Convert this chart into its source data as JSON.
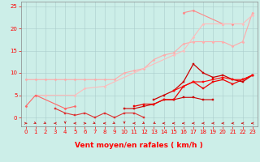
{
  "background_color": "#cceee8",
  "grid_color": "#aacccc",
  "xlim": [
    -0.5,
    23.5
  ],
  "ylim": [
    -2,
    26
  ],
  "x_ticks": [
    0,
    1,
    2,
    3,
    4,
    5,
    6,
    7,
    8,
    9,
    10,
    11,
    12,
    13,
    14,
    15,
    16,
    17,
    18,
    19,
    20,
    21,
    22,
    23
  ],
  "y_ticks": [
    0,
    5,
    10,
    15,
    20,
    25
  ],
  "tick_fontsize": 5,
  "xlabel": "Vent moyen/en rafales ( km/h )",
  "xlabel_fontsize": 6.5,
  "tick_color": "#ff0000",
  "xlabel_color": "#ff0000",
  "series": [
    {
      "x": [
        0,
        1,
        2,
        3,
        4,
        5,
        6,
        7,
        8,
        9,
        10,
        11,
        12,
        13,
        14,
        15,
        16,
        17,
        18,
        19,
        20,
        21,
        22,
        23
      ],
      "y": [
        8.5,
        8.5,
        8.5,
        8.5,
        8.5,
        8.5,
        8.5,
        8.5,
        8.5,
        8.5,
        10,
        10.5,
        11,
        13,
        14,
        14.5,
        16.5,
        17,
        17,
        17,
        17,
        16,
        17,
        23.5
      ],
      "color": "#ffaaaa",
      "marker": "D",
      "markersize": 1.5,
      "linewidth": 0.8
    },
    {
      "x": [
        16,
        17,
        20,
        21
      ],
      "y": [
        23.5,
        24,
        21,
        21
      ],
      "color": "#ff8888",
      "marker": "D",
      "markersize": 1.5,
      "linewidth": 0.8
    },
    {
      "x": [
        1,
        2,
        5,
        6,
        8,
        15,
        16,
        17,
        18,
        20,
        22,
        23
      ],
      "y": [
        5,
        5,
        5,
        6.5,
        7,
        14,
        15,
        18,
        21,
        21,
        21,
        23
      ],
      "color": "#ffbbbb",
      "marker": "D",
      "markersize": 1.5,
      "linewidth": 0.8
    },
    {
      "x": [
        0,
        1,
        4,
        5
      ],
      "y": [
        2.5,
        5,
        2,
        2.5
      ],
      "color": "#ff6666",
      "marker": "D",
      "markersize": 1.5,
      "linewidth": 0.8
    },
    {
      "x": [
        3,
        4,
        5,
        6,
        7,
        8,
        9,
        10,
        11,
        12
      ],
      "y": [
        2,
        1,
        0.5,
        1,
        0,
        1,
        0,
        1,
        1,
        0
      ],
      "color": "#dd3333",
      "marker": "s",
      "markersize": 1.5,
      "linewidth": 0.8
    },
    {
      "x": [
        10,
        11,
        12,
        13,
        14,
        15,
        16,
        17,
        18,
        19
      ],
      "y": [
        2,
        2,
        2.5,
        3,
        4,
        4,
        4.5,
        4.5,
        4,
        4
      ],
      "color": "#cc0000",
      "marker": "s",
      "markersize": 1.5,
      "linewidth": 0.8
    },
    {
      "x": [
        11,
        12,
        13,
        14,
        15,
        16,
        17,
        18,
        19,
        20,
        21,
        22,
        23
      ],
      "y": [
        2.5,
        3,
        3,
        4,
        4,
        7,
        8,
        6.5,
        8,
        8.5,
        7.5,
        8.5,
        9.5
      ],
      "color": "#ee0000",
      "marker": "s",
      "markersize": 1.5,
      "linewidth": 0.9
    },
    {
      "x": [
        13,
        14,
        15,
        16,
        17,
        18,
        19,
        20,
        21,
        22,
        23
      ],
      "y": [
        4,
        5,
        6,
        8,
        12,
        10,
        9,
        9.5,
        8.5,
        8,
        9.5
      ],
      "color": "#cc0000",
      "marker": "s",
      "markersize": 1.5,
      "linewidth": 0.9
    },
    {
      "x": [
        15,
        16,
        17,
        18,
        19,
        20,
        21,
        22,
        23
      ],
      "y": [
        6,
        7,
        8,
        8,
        8.5,
        9,
        8.5,
        8.5,
        9.5
      ],
      "color": "#ff0000",
      "marker": "s",
      "markersize": 1.5,
      "linewidth": 0.8
    }
  ],
  "arrow_angles": [
    90,
    135,
    135,
    270,
    180,
    270,
    90,
    135,
    270,
    135,
    180,
    270,
    135,
    225,
    270,
    270,
    270,
    270,
    270,
    270,
    270,
    270,
    270,
    270
  ]
}
